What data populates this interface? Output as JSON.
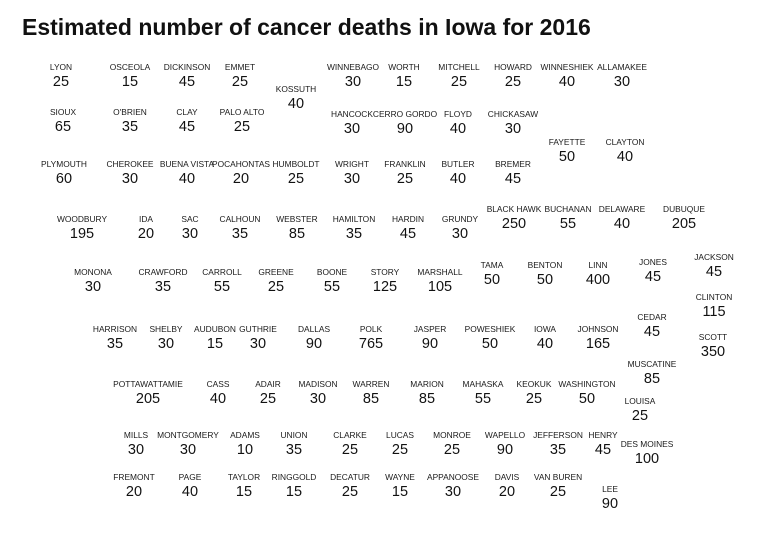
{
  "title": "Estimated number of cancer deaths in Iowa for 2016",
  "colors": {
    "border": "#4aabb8",
    "fill": "#ffffff",
    "text": "#111111"
  },
  "counties": [
    {
      "name": "LYON",
      "value": "25"
    },
    {
      "name": "OSCEOLA",
      "value": "15"
    },
    {
      "name": "DICKINSON",
      "value": "45"
    },
    {
      "name": "EMMET",
      "value": "25"
    },
    {
      "name": "KOSSUTH",
      "value": "40"
    },
    {
      "name": "WINNEBAGO",
      "value": "30"
    },
    {
      "name": "WORTH",
      "value": "15"
    },
    {
      "name": "MITCHELL",
      "value": "25"
    },
    {
      "name": "HOWARD",
      "value": "25"
    },
    {
      "name": "WINNESHIEK",
      "value": "40"
    },
    {
      "name": "ALLAMAKEE",
      "value": "30"
    },
    {
      "name": "SIOUX",
      "value": "65"
    },
    {
      "name": "O'BRIEN",
      "value": "35"
    },
    {
      "name": "CLAY",
      "value": "45"
    },
    {
      "name": "PALO ALTO",
      "value": "25"
    },
    {
      "name": "HANCOCK",
      "value": "30"
    },
    {
      "name": "CERRO GORDO",
      "value": "90"
    },
    {
      "name": "FLOYD",
      "value": "40"
    },
    {
      "name": "CHICKASAW",
      "value": "30"
    },
    {
      "name": "FAYETTE",
      "value": "50"
    },
    {
      "name": "CLAYTON",
      "value": "40"
    },
    {
      "name": "PLYMOUTH",
      "value": "60"
    },
    {
      "name": "CHEROKEE",
      "value": "30"
    },
    {
      "name": "BUENA VISTA",
      "value": "40"
    },
    {
      "name": "POCAHONTAS",
      "value": "20"
    },
    {
      "name": "HUMBOLDT",
      "value": "25"
    },
    {
      "name": "WRIGHT",
      "value": "30"
    },
    {
      "name": "FRANKLIN",
      "value": "25"
    },
    {
      "name": "BUTLER",
      "value": "40"
    },
    {
      "name": "BREMER",
      "value": "45"
    },
    {
      "name": "WOODBURY",
      "value": "195"
    },
    {
      "name": "IDA",
      "value": "20"
    },
    {
      "name": "SAC",
      "value": "30"
    },
    {
      "name": "CALHOUN",
      "value": "35"
    },
    {
      "name": "WEBSTER",
      "value": "85"
    },
    {
      "name": "HAMILTON",
      "value": "35"
    },
    {
      "name": "HARDIN",
      "value": "45"
    },
    {
      "name": "GRUNDY",
      "value": "30"
    },
    {
      "name": "BLACK HAWK",
      "value": "250"
    },
    {
      "name": "BUCHANAN",
      "value": "55"
    },
    {
      "name": "DELAWARE",
      "value": "40"
    },
    {
      "name": "DUBUQUE",
      "value": "205"
    },
    {
      "name": "MONONA",
      "value": "30"
    },
    {
      "name": "CRAWFORD",
      "value": "35"
    },
    {
      "name": "CARROLL",
      "value": "55"
    },
    {
      "name": "GREENE",
      "value": "25"
    },
    {
      "name": "BOONE",
      "value": "55"
    },
    {
      "name": "STORY",
      "value": "125"
    },
    {
      "name": "MARSHALL",
      "value": "105"
    },
    {
      "name": "TAMA",
      "value": "50"
    },
    {
      "name": "BENTON",
      "value": "50"
    },
    {
      "name": "LINN",
      "value": "400"
    },
    {
      "name": "JONES",
      "value": "45"
    },
    {
      "name": "JACKSON",
      "value": "45"
    },
    {
      "name": "CLINTON",
      "value": "115"
    },
    {
      "name": "HARRISON",
      "value": "35"
    },
    {
      "name": "SHELBY",
      "value": "30"
    },
    {
      "name": "AUDUBON",
      "value": "15"
    },
    {
      "name": "GUTHRIE",
      "value": "30"
    },
    {
      "name": "DALLAS",
      "value": "90"
    },
    {
      "name": "POLK",
      "value": "765"
    },
    {
      "name": "JASPER",
      "value": "90"
    },
    {
      "name": "POWESHIEK",
      "value": "50"
    },
    {
      "name": "IOWA",
      "value": "40"
    },
    {
      "name": "JOHNSON",
      "value": "165"
    },
    {
      "name": "CEDAR",
      "value": "45"
    },
    {
      "name": "SCOTT",
      "value": "350"
    },
    {
      "name": "POTTAWATTAMIE",
      "value": "205"
    },
    {
      "name": "CASS",
      "value": "40"
    },
    {
      "name": "ADAIR",
      "value": "25"
    },
    {
      "name": "MADISON",
      "value": "30"
    },
    {
      "name": "WARREN",
      "value": "85"
    },
    {
      "name": "MARION",
      "value": "85"
    },
    {
      "name": "MAHASKA",
      "value": "55"
    },
    {
      "name": "KEOKUK",
      "value": "25"
    },
    {
      "name": "WASHINGTON",
      "value": "50"
    },
    {
      "name": "MUSCATINE",
      "value": "85"
    },
    {
      "name": "LOUISA",
      "value": "25"
    },
    {
      "name": "MILLS",
      "value": "30"
    },
    {
      "name": "MONTGOMERY",
      "value": "30"
    },
    {
      "name": "ADAMS",
      "value": "10"
    },
    {
      "name": "UNION",
      "value": "35"
    },
    {
      "name": "CLARKE",
      "value": "25"
    },
    {
      "name": "LUCAS",
      "value": "25"
    },
    {
      "name": "MONROE",
      "value": "25"
    },
    {
      "name": "WAPELLO",
      "value": "90"
    },
    {
      "name": "JEFFERSON",
      "value": "35"
    },
    {
      "name": "HENRY",
      "value": "45"
    },
    {
      "name": "DES MOINES",
      "value": "100"
    },
    {
      "name": "FREMONT",
      "value": "20"
    },
    {
      "name": "PAGE",
      "value": "40"
    },
    {
      "name": "TAYLOR",
      "value": "15"
    },
    {
      "name": "RINGGOLD",
      "value": "15"
    },
    {
      "name": "DECATUR",
      "value": "25"
    },
    {
      "name": "WAYNE",
      "value": "15"
    },
    {
      "name": "APPANOOSE",
      "value": "30"
    },
    {
      "name": "DAVIS",
      "value": "20"
    },
    {
      "name": "VAN BUREN",
      "value": "25"
    },
    {
      "name": "LEE",
      "value": "90"
    }
  ]
}
